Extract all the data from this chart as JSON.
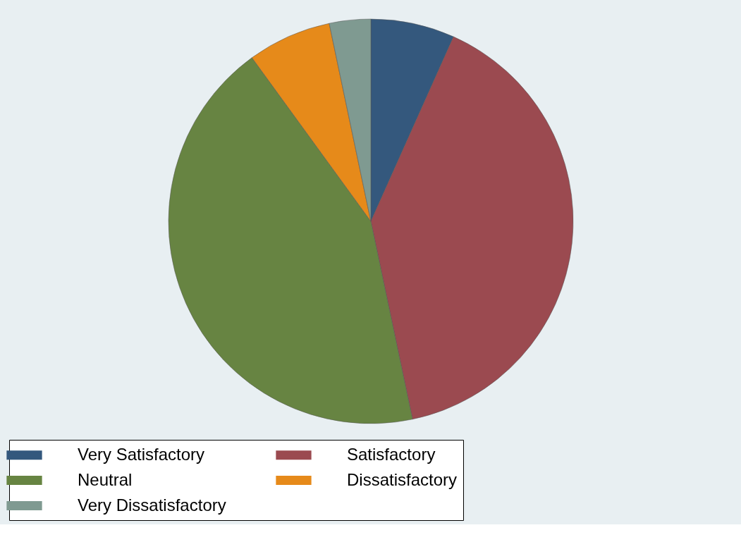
{
  "chart_data": {
    "type": "pie",
    "categories": [
      "Very Satisfactory",
      "Satisfactory",
      "Neutral",
      "Dissatisfactory",
      "Very Dissatisfactory"
    ],
    "values": [
      6.7,
      40.0,
      43.3,
      6.7,
      3.3
    ],
    "colors": [
      "#34587d",
      "#9b4a50",
      "#678442",
      "#e68a1a",
      "#7f9a91"
    ],
    "legend": "bottom"
  }
}
